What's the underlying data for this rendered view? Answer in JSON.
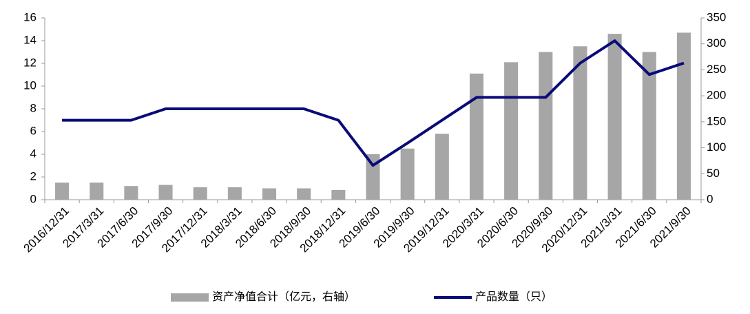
{
  "chart_data": {
    "type": "bar-line",
    "categories": [
      "2016/12/31",
      "2017/3/31",
      "2017/6/30",
      "2017/9/30",
      "2017/12/31",
      "2018/3/31",
      "2018/6/30",
      "2018/9/30",
      "2018/12/31",
      "2019/6/30",
      "2019/9/30",
      "2019/12/31",
      "2020/3/31",
      "2020/6/30",
      "2020/9/30",
      "2020/12/31",
      "2021/3/31",
      "2021/6/30",
      "2021/9/30"
    ],
    "series": [
      {
        "name": "资产净值合计（亿元，右轴）",
        "type": "bar",
        "color": "#a6a6a6",
        "values": [
          1.5,
          1.5,
          1.2,
          1.3,
          1.1,
          1.1,
          1.0,
          1.0,
          0.85,
          4.0,
          4.5,
          5.8,
          11.1,
          12.1,
          13.0,
          13.5,
          14.6,
          13.0,
          14.7
        ]
      },
      {
        "name": "产品数量（只）",
        "type": "line",
        "color": "#0a0a78",
        "axis": "y2",
        "values": [
          153,
          153,
          153,
          175,
          175,
          175,
          175,
          175,
          153,
          66,
          109,
          153,
          197,
          197,
          197,
          263,
          306,
          241,
          263
        ]
      }
    ],
    "ylim": [
      0,
      16
    ],
    "yticks": [
      0,
      2,
      4,
      6,
      8,
      10,
      12,
      14,
      16
    ],
    "y2lim": [
      0,
      350
    ],
    "y2ticks": [
      0,
      50,
      100,
      150,
      200,
      250,
      300,
      350
    ]
  }
}
